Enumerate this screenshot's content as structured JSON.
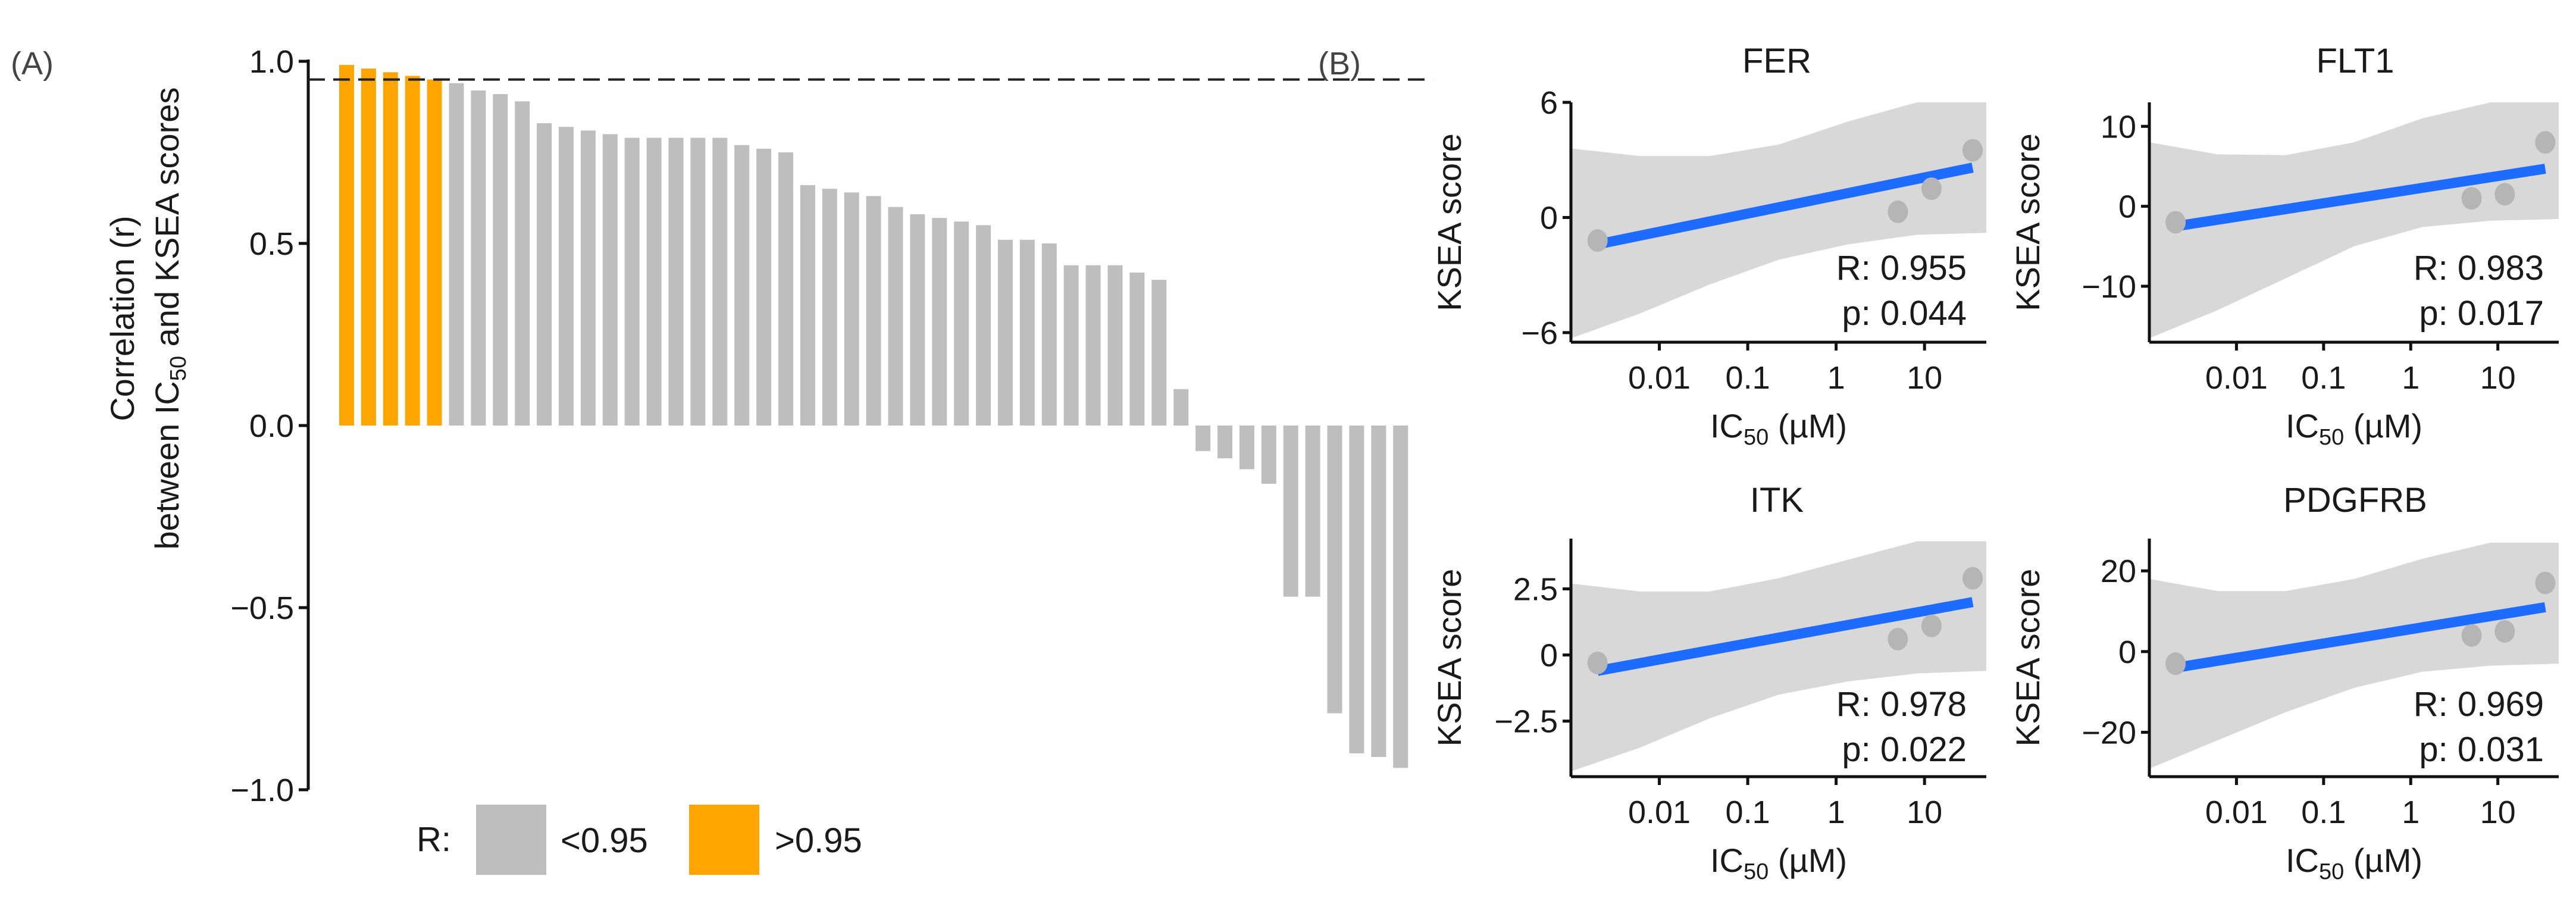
{
  "panels": {
    "a": "(A)",
    "b": "(B)"
  },
  "chart_data": [
    {
      "type": "bar",
      "panel": "(A)",
      "ylabel_line1": "Correlation (r)",
      "ylabel_line2_prefix": "between IC",
      "ylabel_line2_sub": "50",
      "ylabel_line2_suffix": " and KSEA scores",
      "ylim": [
        -1.0,
        1.0
      ],
      "yticks": [
        -1.0,
        -0.5,
        0.0,
        0.5,
        1.0
      ],
      "ytick_labels": [
        "−1.0",
        "−0.5",
        "0.0",
        "0.5",
        "1.0"
      ],
      "threshold": 0.95,
      "threshold_style": "dashed",
      "colors": {
        "above": "#FFA500",
        "below": "#BEBEBE"
      },
      "values": [
        0.99,
        0.98,
        0.97,
        0.96,
        0.95,
        0.94,
        0.92,
        0.91,
        0.89,
        0.83,
        0.82,
        0.81,
        0.8,
        0.79,
        0.79,
        0.79,
        0.79,
        0.79,
        0.77,
        0.76,
        0.75,
        0.66,
        0.65,
        0.64,
        0.63,
        0.6,
        0.58,
        0.57,
        0.56,
        0.55,
        0.51,
        0.51,
        0.5,
        0.44,
        0.44,
        0.44,
        0.42,
        0.4,
        0.1,
        -0.07,
        -0.09,
        -0.12,
        -0.16,
        -0.47,
        -0.47,
        -0.79,
        -0.9,
        -0.91,
        -0.94
      ],
      "legend": {
        "title": "R:",
        "items": [
          {
            "label": "<0.95",
            "color": "#BEBEBE"
          },
          {
            "label": ">0.95",
            "color": "#FFA500"
          }
        ]
      }
    },
    {
      "type": "scatter",
      "title": "FER",
      "xscale": "log10",
      "xlim": [
        0.001,
        50
      ],
      "xticks": [
        0.01,
        0.1,
        1,
        10
      ],
      "xtick_labels": [
        "0.01",
        "0.1",
        "1",
        "10"
      ],
      "ylim": [
        -6.5,
        6
      ],
      "yticks": [
        -6,
        0,
        6
      ],
      "ytick_labels": [
        "−6",
        "0",
        "6"
      ],
      "points": [
        [
          0.002,
          -1.2
        ],
        [
          5,
          0.3
        ],
        [
          12,
          1.5
        ],
        [
          35,
          3.5
        ]
      ],
      "fit": {
        "x0": 0.002,
        "y0": -1.4,
        "x1": 35,
        "y1": 2.6
      },
      "band_lower": [
        -6.3,
        -5.0,
        -3.5,
        -2.2,
        -1.4,
        -0.9,
        -0.8
      ],
      "band_upper": [
        3.6,
        3.2,
        3.2,
        3.8,
        5.0,
        6.0,
        6.0
      ],
      "stats": {
        "r": "R: 0.955",
        "p": "p: 0.044"
      }
    },
    {
      "type": "scatter",
      "title": "FLT1",
      "xscale": "log10",
      "xlim": [
        0.001,
        50
      ],
      "xticks": [
        0.01,
        0.1,
        1,
        10
      ],
      "xtick_labels": [
        "0.01",
        "0.1",
        "1",
        "10"
      ],
      "ylim": [
        -17,
        13
      ],
      "yticks": [
        -10,
        0,
        10
      ],
      "ytick_labels": [
        "−10",
        "0",
        "10"
      ],
      "points": [
        [
          0.002,
          -2.0
        ],
        [
          5,
          1.0
        ],
        [
          12,
          1.5
        ],
        [
          35,
          8.0
        ]
      ],
      "fit": {
        "x0": 0.002,
        "y0": -2.5,
        "x1": 35,
        "y1": 4.7
      },
      "band_lower": [
        -16.5,
        -13.0,
        -9.0,
        -5.0,
        -2.6,
        -1.8,
        -1.6
      ],
      "band_upper": [
        8.0,
        6.5,
        6.4,
        8.0,
        11.0,
        13.0,
        13.0
      ],
      "stats": {
        "r": "R: 0.983",
        "p": "p: 0.017"
      }
    },
    {
      "type": "scatter",
      "title": "ITK",
      "xscale": "log10",
      "xlim": [
        0.001,
        50
      ],
      "xticks": [
        0.01,
        0.1,
        1,
        10
      ],
      "xtick_labels": [
        "0.01",
        "0.1",
        "1",
        "10"
      ],
      "ylim": [
        -4.6,
        4.4
      ],
      "yticks": [
        -2.5,
        0,
        2.5
      ],
      "ytick_labels": [
        "−2.5",
        "0",
        "2.5"
      ],
      "points": [
        [
          0.002,
          -0.3
        ],
        [
          5,
          0.6
        ],
        [
          12,
          1.1
        ],
        [
          35,
          2.9
        ]
      ],
      "fit": {
        "x0": 0.002,
        "y0": -0.6,
        "x1": 35,
        "y1": 2.0
      },
      "band_lower": [
        -4.4,
        -3.5,
        -2.4,
        -1.5,
        -1.0,
        -0.7,
        -0.6
      ],
      "band_upper": [
        2.7,
        2.4,
        2.4,
        2.9,
        3.6,
        4.3,
        4.3
      ],
      "stats": {
        "r": "R: 0.978",
        "p": "p: 0.022"
      }
    },
    {
      "type": "scatter",
      "title": "PDGFRB",
      "xscale": "log10",
      "xlim": [
        0.001,
        50
      ],
      "xticks": [
        0.01,
        0.1,
        1,
        10
      ],
      "xtick_labels": [
        "0.01",
        "0.1",
        "1",
        "10"
      ],
      "ylim": [
        -31,
        28
      ],
      "yticks": [
        -20,
        0,
        20
      ],
      "ytick_labels": [
        "−20",
        "0",
        "20"
      ],
      "points": [
        [
          0.002,
          -3.0
        ],
        [
          5,
          4.0
        ],
        [
          12,
          5.0
        ],
        [
          35,
          17.0
        ]
      ],
      "fit": {
        "x0": 0.002,
        "y0": -4.0,
        "x1": 35,
        "y1": 11.0
      },
      "band_lower": [
        -29.0,
        -22.0,
        -15.0,
        -9.0,
        -5.0,
        -3.5,
        -3.0
      ],
      "band_upper": [
        18.0,
        15.0,
        15.0,
        18.0,
        23.0,
        27.0,
        27.0
      ],
      "stats": {
        "r": "R: 0.969",
        "p": "p: 0.031"
      }
    }
  ],
  "scatter_axes": {
    "ylabel": "KSEA score",
    "xlabel_prefix": "IC",
    "xlabel_sub": "50",
    "xlabel_suffix": " (µM)"
  }
}
